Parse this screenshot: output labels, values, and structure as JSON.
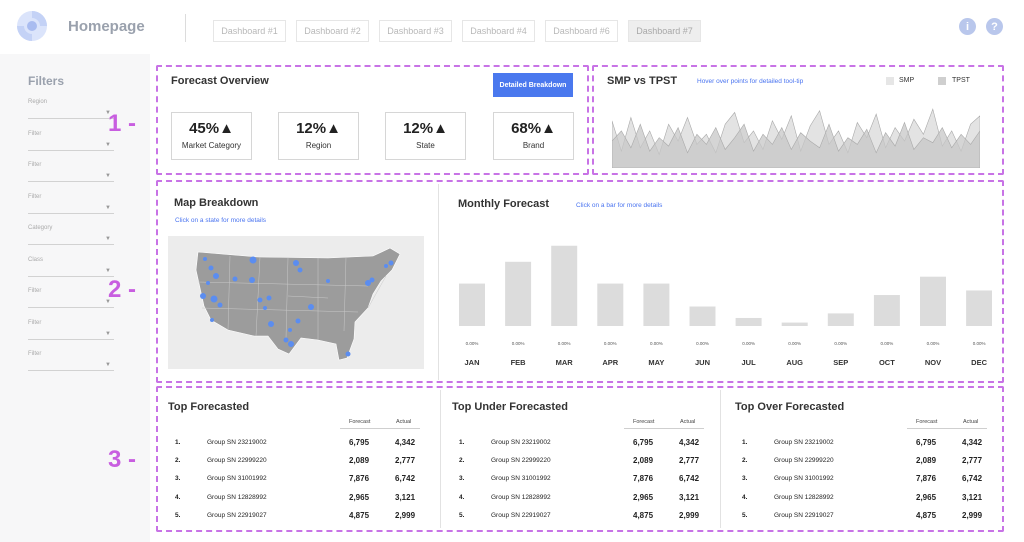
{
  "header": {
    "app_title": "Homepage",
    "tabs": [
      {
        "label": "Dashboard #1",
        "active": false
      },
      {
        "label": "Dashboard #2",
        "active": false
      },
      {
        "label": "Dashboard #3",
        "active": false
      },
      {
        "label": "Dashboard #4",
        "active": false
      },
      {
        "label": "Dashboard #6",
        "active": false
      },
      {
        "label": "Dashboard #7",
        "active": true
      }
    ],
    "info_icon": "i",
    "help_icon": "?"
  },
  "sidebar": {
    "title": "Filters",
    "filters": [
      {
        "label": "Region"
      },
      {
        "label": "Filter"
      },
      {
        "label": "Filter"
      },
      {
        "label": "Filter"
      },
      {
        "label": "Category"
      },
      {
        "label": "Class"
      },
      {
        "label": "Filter"
      },
      {
        "label": "Filter"
      },
      {
        "label": "Filter"
      }
    ]
  },
  "sections": [
    "1 -",
    "2 -",
    "3 -"
  ],
  "forecast_overview": {
    "title": "Forecast Overview",
    "button": "Detailed Breakdown",
    "kpis": [
      {
        "value": "45%▲",
        "label": "Market Category"
      },
      {
        "value": "12%▲",
        "label": "Region"
      },
      {
        "value": "12%▲",
        "label": "State"
      },
      {
        "value": "68%▲",
        "label": "Brand"
      }
    ]
  },
  "smp_tpst": {
    "title": "SMP vs TPST",
    "hint": "Hover over points for detailed tool-tip",
    "legend": [
      {
        "name": "SMP",
        "color": "#e6e6e6"
      },
      {
        "name": "TPST",
        "color": "#cfcfcf"
      }
    ]
  },
  "map": {
    "title": "Map Breakdown",
    "hint": "Click on a state for more details",
    "accent": "#5b8df0"
  },
  "monthly": {
    "title": "Monthly Forecast",
    "hint": "Click on a bar for more details"
  },
  "chart_data": [
    {
      "type": "area",
      "title": "SMP vs TPST",
      "series": [
        {
          "name": "SMP",
          "values": [
            28,
            10,
            30,
            12,
            22,
            8,
            26,
            16,
            30,
            14,
            20,
            9,
            26,
            33,
            15,
            22,
            11,
            28,
            17,
            31,
            10,
            25,
            34,
            14,
            22,
            9,
            27,
            18,
            32,
            12,
            24,
            16,
            29,
            20,
            35,
            13,
            22,
            10,
            26,
            31
          ]
        },
        {
          "name": "TPST",
          "values": [
            16,
            22,
            12,
            26,
            10,
            18,
            13,
            24,
            9,
            20,
            14,
            24,
            11,
            18,
            26,
            10,
            20,
            14,
            24,
            11,
            21,
            16,
            12,
            26,
            10,
            18,
            14,
            23,
            9,
            21,
            13,
            27,
            11,
            18,
            15,
            24,
            12,
            20,
            14,
            22
          ]
        }
      ]
    },
    {
      "type": "bar",
      "title": "Monthly Forecast",
      "categories": [
        "JAN",
        "FEB",
        "MAR",
        "APR",
        "MAY",
        "JUN",
        "JUL",
        "AUG",
        "SEP",
        "OCT",
        "NOV",
        "DEC"
      ],
      "values": [
        37,
        56,
        70,
        37,
        37,
        17,
        7,
        3,
        11,
        27,
        43,
        31
      ],
      "data_labels": [
        "0.00%",
        "0.00%",
        "0.00%",
        "0.00%",
        "0.00%",
        "0.00%",
        "0.00%",
        "0.00%",
        "0.00%",
        "0.00%",
        "0.00%",
        "0.00%"
      ],
      "ylim": [
        0,
        75
      ],
      "color": "#dcdcdc"
    }
  ],
  "tables": [
    {
      "title": "Top Forecasted",
      "headers": [
        "Forecast",
        "Actual"
      ],
      "rows": [
        {
          "num": "1.",
          "name": "Group SN 23219002",
          "forecast": "6,795",
          "actual": "4,342"
        },
        {
          "num": "2.",
          "name": "Group SN 22999220",
          "forecast": "2,089",
          "actual": "2,777"
        },
        {
          "num": "3.",
          "name": "Group SN 31001992",
          "forecast": "7,876",
          "actual": "6,742"
        },
        {
          "num": "4.",
          "name": "Group SN 12828992",
          "forecast": "2,965",
          "actual": "3,121"
        },
        {
          "num": "5.",
          "name": "Group SN 22919027",
          "forecast": "4,875",
          "actual": "2,999"
        }
      ]
    },
    {
      "title": "Top Under Forecasted",
      "headers": [
        "Forecast",
        "Actual"
      ],
      "rows": [
        {
          "num": "1.",
          "name": "Group SN 23219002",
          "forecast": "6,795",
          "actual": "4,342"
        },
        {
          "num": "2.",
          "name": "Group SN 22999220",
          "forecast": "2,089",
          "actual": "2,777"
        },
        {
          "num": "3.",
          "name": "Group SN 31001992",
          "forecast": "7,876",
          "actual": "6,742"
        },
        {
          "num": "4.",
          "name": "Group SN 12828992",
          "forecast": "2,965",
          "actual": "3,121"
        },
        {
          "num": "5.",
          "name": "Group SN 22919027",
          "forecast": "4,875",
          "actual": "2,999"
        }
      ]
    },
    {
      "title": "Top Over Forecasted",
      "headers": [
        "Forecast",
        "Actual"
      ],
      "rows": [
        {
          "num": "1.",
          "name": "Group SN 23219002",
          "forecast": "6,795",
          "actual": "4,342"
        },
        {
          "num": "2.",
          "name": "Group SN 22999220",
          "forecast": "2,089",
          "actual": "2,777"
        },
        {
          "num": "3.",
          "name": "Group SN 31001992",
          "forecast": "7,876",
          "actual": "6,742"
        },
        {
          "num": "4.",
          "name": "Group SN 12828992",
          "forecast": "2,965",
          "actual": "3,121"
        },
        {
          "num": "5.",
          "name": "Group SN 22919027",
          "forecast": "4,875",
          "actual": "2,999"
        }
      ]
    }
  ]
}
